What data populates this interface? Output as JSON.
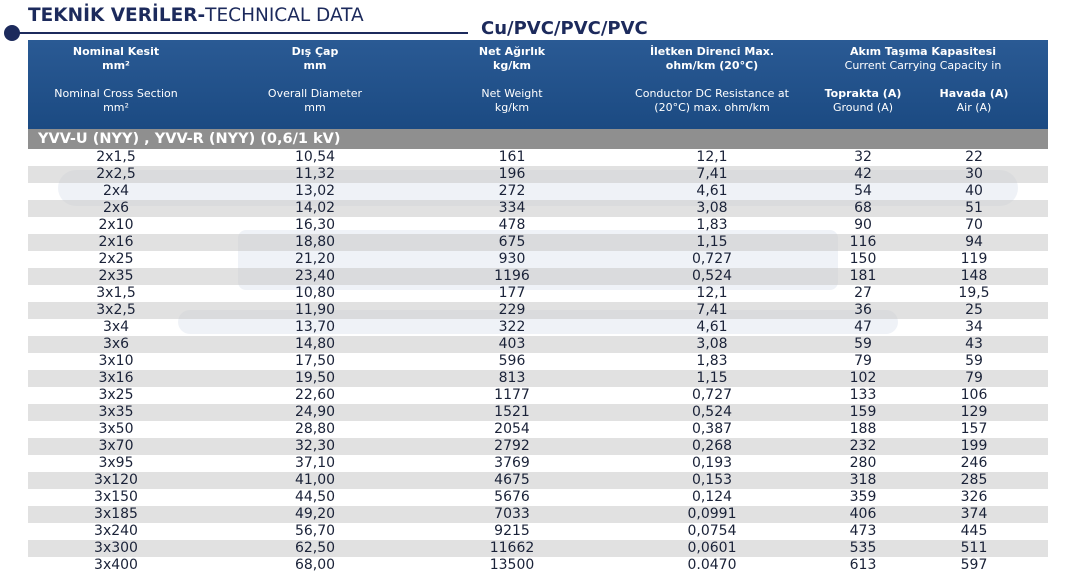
{
  "title": {
    "bold": "TEKNİK VERİLER-",
    "normal": "TECHNICAL DATA"
  },
  "subtitle": "Cu/PVC/PVC/PVC",
  "header": {
    "nominal": {
      "tr_name": "Nominal Kesit",
      "tr_unit": "mm²",
      "en_name": "Nominal Cross Section",
      "en_unit": "mm²"
    },
    "diameter": {
      "tr_name": "Dış Çap",
      "tr_unit": "mm",
      "en_name": "Overall Diameter",
      "en_unit": "mm"
    },
    "weight": {
      "tr_name": "Net Ağırlık",
      "tr_unit": "kg/km",
      "en_name": "Net Weight",
      "en_unit": "kg/km"
    },
    "resistance": {
      "tr_name": "İletken Direnci Max.",
      "tr_unit": "ohm/km (20°C)",
      "en_name": "Conductor DC Resistance at",
      "en_unit": "(20°C) max. ohm/km"
    },
    "capacity": {
      "tr_name": "Akım Taşıma Kapasitesi",
      "en_name": "Current Carrying Capacity in",
      "ground_tr": "Toprakta (A)",
      "ground_en": "Ground (A)",
      "air_tr": "Havada (A)",
      "air_en": "Air (A)"
    }
  },
  "section": "YVV-U (NYY) , YVV-R (NYY) (0,6/1 kV)",
  "rows": [
    [
      "2x1,5",
      "10,54",
      "161",
      "12,1",
      "32",
      "22"
    ],
    [
      "2x2,5",
      "11,32",
      "196",
      "7,41",
      "42",
      "30"
    ],
    [
      "2x4",
      "13,02",
      "272",
      "4,61",
      "54",
      "40"
    ],
    [
      "2x6",
      "14,02",
      "334",
      "3,08",
      "68",
      "51"
    ],
    [
      "2x10",
      "16,30",
      "478",
      "1,83",
      "90",
      "70"
    ],
    [
      "2x16",
      "18,80",
      "675",
      "1,15",
      "116",
      "94"
    ],
    [
      "2x25",
      "21,20",
      "930",
      "0,727",
      "150",
      "119"
    ],
    [
      "2x35",
      "23,40",
      "1196",
      "0,524",
      "181",
      "148"
    ],
    [
      "3x1,5",
      "10,80",
      "177",
      "12,1",
      "27",
      "19,5"
    ],
    [
      "3x2,5",
      "11,90",
      "229",
      "7,41",
      "36",
      "25"
    ],
    [
      "3x4",
      "13,70",
      "322",
      "4,61",
      "47",
      "34"
    ],
    [
      "3x6",
      "14,80",
      "403",
      "3,08",
      "59",
      "43"
    ],
    [
      "3x10",
      "17,50",
      "596",
      "1,83",
      "79",
      "59"
    ],
    [
      "3x16",
      "19,50",
      "813",
      "1,15",
      "102",
      "79"
    ],
    [
      "3x25",
      "22,60",
      "1177",
      "0,727",
      "133",
      "106"
    ],
    [
      "3x35",
      "24,90",
      "1521",
      "0,524",
      "159",
      "129"
    ],
    [
      "3x50",
      "28,80",
      "2054",
      "0,387",
      "188",
      "157"
    ],
    [
      "3x70",
      "32,30",
      "2792",
      "0,268",
      "232",
      "199"
    ],
    [
      "3x95",
      "37,10",
      "3769",
      "0,193",
      "280",
      "246"
    ],
    [
      "3x120",
      "41,00",
      "4675",
      "0,153",
      "318",
      "285"
    ],
    [
      "3x150",
      "44,50",
      "5676",
      "0,124",
      "359",
      "326"
    ],
    [
      "3x185",
      "49,20",
      "7033",
      "0,0991",
      "406",
      "374"
    ],
    [
      "3x240",
      "56,70",
      "9215",
      "0,0754",
      "473",
      "445"
    ],
    [
      "3x300",
      "62,50",
      "11662",
      "0,0601",
      "535",
      "511"
    ],
    [
      "3x400",
      "68,00",
      "13500",
      "0.0470",
      "613",
      "597"
    ]
  ],
  "colors": {
    "header_bg": "#1f4e87",
    "section_bg": "#8f8f8f",
    "stripe": "#c8c8c8",
    "title": "#1c2a5c"
  }
}
